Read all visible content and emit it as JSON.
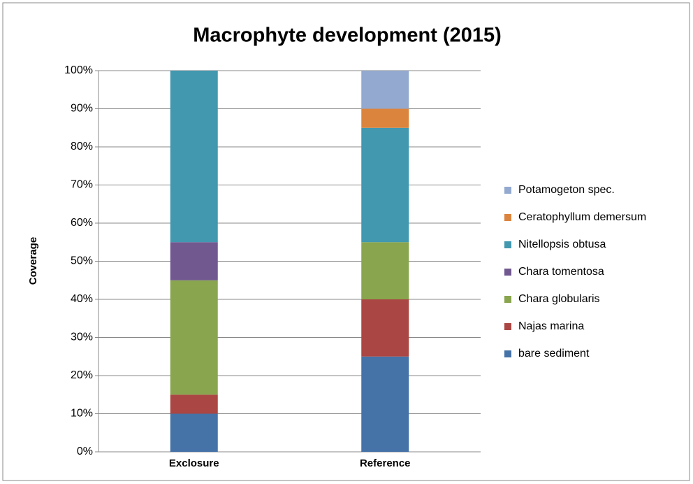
{
  "chart_data": {
    "type": "stacked_bar",
    "title": "Macrophyte development (2015)",
    "y_label": "Coverage",
    "categories": [
      "Exclosure",
      "Reference"
    ],
    "series": [
      {
        "name": "bare sediment",
        "color": "#4572a7",
        "values": [
          10,
          25
        ]
      },
      {
        "name": "Najas marina",
        "color": "#aa4643",
        "values": [
          5,
          15
        ]
      },
      {
        "name": "Chara globularis",
        "color": "#89a54e",
        "values": [
          30,
          15
        ]
      },
      {
        "name": "Chara tomentosa",
        "color": "#71588f",
        "values": [
          10,
          0
        ]
      },
      {
        "name": "Nitellopsis obtusa",
        "color": "#4198af",
        "values": [
          45,
          30
        ]
      },
      {
        "name": "Ceratophyllum demersum",
        "color": "#db843d",
        "values": [
          0,
          5
        ]
      },
      {
        "name": "Potamogeton spec.",
        "color": "#93a9cf",
        "values": [
          0,
          10
        ]
      }
    ],
    "ylim": [
      0,
      100
    ],
    "yticks": [
      {
        "value": 0,
        "label": "0%"
      },
      {
        "value": 10,
        "label": "10%"
      },
      {
        "value": 20,
        "label": "20%"
      },
      {
        "value": 30,
        "label": "30%"
      },
      {
        "value": 40,
        "label": "40%"
      },
      {
        "value": 50,
        "label": "50%"
      },
      {
        "value": 60,
        "label": "60%"
      },
      {
        "value": 70,
        "label": "70%"
      },
      {
        "value": 80,
        "label": "80%"
      },
      {
        "value": 90,
        "label": "90%"
      },
      {
        "value": 100,
        "label": "100%"
      }
    ],
    "grid": true,
    "legend": "right"
  }
}
